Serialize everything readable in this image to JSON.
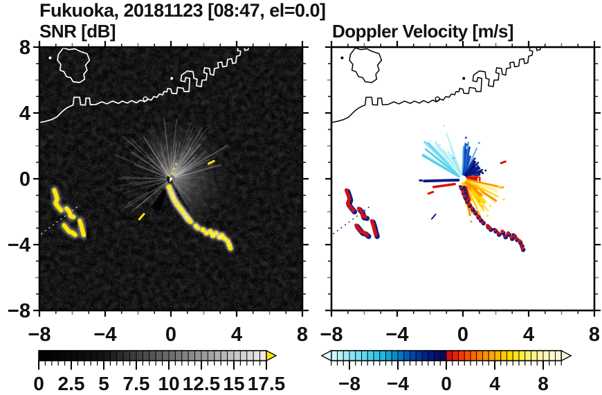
{
  "title": "Fukuoka, 20181123 [08:47, el=0.0]",
  "panels": {
    "snr_subtitle": "SNR [dB]",
    "doppler_subtitle": "Doppler Velocity [m/s]"
  },
  "axes": {
    "range": [
      -8,
      8
    ],
    "tick_values": [
      -8,
      -4,
      0,
      4,
      8
    ],
    "x_tick_labels": [
      "−8",
      "−4",
      "0",
      "4",
      "8"
    ],
    "y_tick_labels": [
      "8",
      "4",
      "0",
      "−4",
      "−8"
    ]
  },
  "colorbars": {
    "snr": {
      "range": [
        0,
        17.5
      ],
      "labels": [
        {
          "v": 0,
          "t": "0"
        },
        {
          "v": 2.5,
          "t": "2.5"
        },
        {
          "v": 5,
          "t": "5"
        },
        {
          "v": 7.5,
          "t": "7.5"
        },
        {
          "v": 10,
          "t": "10"
        },
        {
          "v": 12.5,
          "t": "12.5"
        },
        {
          "v": 15,
          "t": "15"
        },
        {
          "v": 17.5,
          "t": "17.5"
        }
      ],
      "over_arrow_color": "#ffe800",
      "cells": [
        "#010101",
        "#030303",
        "#050505",
        "#070707",
        "#090909",
        "#0b0b0b",
        "#0d0d0d",
        "#0f0f0f",
        "#111111",
        "#131313",
        "#181818",
        "#212121",
        "#2a2a2a",
        "#333333",
        "#3c3c3c",
        "#444444",
        "#4d4d4d",
        "#565656",
        "#5f5f5f",
        "#686868",
        "#707070",
        "#797979",
        "#828282",
        "#8b8b8b",
        "#949494",
        "#9c9c9c",
        "#a5a5a5",
        "#aeaeae",
        "#b7b7b7",
        "#c0c0c0",
        "#c8c8c8",
        "#d1d1d1",
        "#dadada",
        "#e3e3e3",
        "#ececec"
      ]
    },
    "doppler": {
      "range": [
        -9.5,
        9.5
      ],
      "labels": [
        {
          "v": -8,
          "t": "−8"
        },
        {
          "v": -4,
          "t": "−4"
        },
        {
          "v": 0,
          "t": "0"
        },
        {
          "v": 4,
          "t": "4"
        },
        {
          "v": 8,
          "t": "8"
        }
      ],
      "under_arrow_color": "#def9fc",
      "over_arrow_color": "#f7f4de",
      "cells": [
        "#cdf4f9",
        "#b8eff7",
        "#a2eaf5",
        "#8ce4f2",
        "#76def0",
        "#60d7ed",
        "#4aceea",
        "#34c4e6",
        "#20b6e0",
        "#10a3d8",
        "#078ecd",
        "#0376c1",
        "#025eb5",
        "#0147a8",
        "#02349b",
        "#03248d",
        "#04187e",
        "#050f6d",
        "#060a58",
        "#d60e0e",
        "#e62408",
        "#f13a03",
        "#f95001",
        "#fd6600",
        "#ff7b00",
        "#ff9000",
        "#ffa400",
        "#ffb700",
        "#ffc800",
        "#ffd700",
        "#ffe315",
        "#ffeb40",
        "#fff066",
        "#fff388",
        "#fff5a4",
        "#fff8ba",
        "#fdf8cb",
        "#faf6d8"
      ]
    }
  },
  "map": {
    "island": [
      [
        -6.55,
        7.95
      ],
      [
        -6.2,
        7.85
      ],
      [
        -5.85,
        7.9
      ],
      [
        -5.55,
        7.75
      ],
      [
        -5.1,
        7.6
      ],
      [
        -4.95,
        7.2
      ],
      [
        -5.2,
        6.9
      ],
      [
        -5.1,
        6.6
      ],
      [
        -5.3,
        6.35
      ],
      [
        -5.25,
        6.05
      ],
      [
        -5.55,
        5.85
      ],
      [
        -5.95,
        5.9
      ],
      [
        -6.1,
        6.15
      ],
      [
        -6.35,
        6.2
      ],
      [
        -6.5,
        6.5
      ],
      [
        -6.75,
        6.6
      ],
      [
        -6.7,
        6.95
      ],
      [
        -6.9,
        7.2
      ],
      [
        -6.85,
        7.55
      ],
      [
        -6.55,
        7.95
      ]
    ],
    "coast": [
      [
        -8.06,
        3.4
      ],
      [
        -7.6,
        3.5
      ],
      [
        -7.25,
        3.6
      ],
      [
        -6.95,
        3.75
      ],
      [
        -6.6,
        4.1
      ],
      [
        -6.35,
        4.3
      ],
      [
        -6.1,
        4.42
      ],
      [
        -5.95,
        4.48
      ],
      [
        -5.9,
        4.95
      ],
      [
        -5.55,
        4.95
      ],
      [
        -5.5,
        4.5
      ],
      [
        -5.2,
        4.48
      ],
      [
        -5.18,
        4.9
      ],
      [
        -4.95,
        4.9
      ],
      [
        -4.9,
        4.5
      ],
      [
        -4.55,
        4.52
      ],
      [
        -4.2,
        4.68
      ],
      [
        -3.9,
        4.55
      ],
      [
        -3.55,
        4.72
      ],
      [
        -3.2,
        4.58
      ],
      [
        -2.95,
        4.72
      ],
      [
        -2.65,
        4.6
      ],
      [
        -2.4,
        4.75
      ],
      [
        -2.1,
        4.62
      ],
      [
        -1.85,
        4.78
      ],
      [
        -1.6,
        4.68
      ],
      [
        -1.4,
        4.85
      ],
      [
        -1.2,
        4.78
      ],
      [
        -1.05,
        5.0
      ],
      [
        -0.85,
        4.95
      ],
      [
        -0.7,
        5.15
      ],
      [
        -0.5,
        5.1
      ],
      [
        -0.42,
        5.3
      ],
      [
        -0.25,
        5.28
      ],
      [
        -0.2,
        5.5
      ],
      [
        0.0,
        5.45
      ],
      [
        0.05,
        5.2
      ],
      [
        0.35,
        5.18
      ],
      [
        0.4,
        5.55
      ],
      [
        0.75,
        5.5
      ],
      [
        0.8,
        5.3
      ],
      [
        1.1,
        5.3
      ],
      [
        1.15,
        6.1
      ],
      [
        0.9,
        6.15
      ],
      [
        0.85,
        5.9
      ],
      [
        0.6,
        5.95
      ],
      [
        0.65,
        6.3
      ],
      [
        1.0,
        6.55
      ],
      [
        1.35,
        6.5
      ],
      [
        1.4,
        6.1
      ],
      [
        1.6,
        6.05
      ],
      [
        1.55,
        5.65
      ],
      [
        1.85,
        5.6
      ],
      [
        1.9,
        6.0
      ],
      [
        2.15,
        6.0
      ],
      [
        2.2,
        6.4
      ],
      [
        2.0,
        6.45
      ],
      [
        2.05,
        6.75
      ],
      [
        2.35,
        6.7
      ],
      [
        2.4,
        6.35
      ],
      [
        2.6,
        6.3
      ],
      [
        2.65,
        6.7
      ],
      [
        2.9,
        6.75
      ],
      [
        2.85,
        7.05
      ],
      [
        3.1,
        7.1
      ],
      [
        3.15,
        6.8
      ],
      [
        3.4,
        6.85
      ],
      [
        3.45,
        7.25
      ],
      [
        3.7,
        7.3
      ],
      [
        3.75,
        7.0
      ],
      [
        3.95,
        7.05
      ],
      [
        4.0,
        7.45
      ],
      [
        4.2,
        7.5
      ],
      [
        4.25,
        7.75
      ],
      [
        4.05,
        7.8
      ],
      [
        4.1,
        8.1
      ]
    ],
    "notch": [
      [
        4.45,
        8.1
      ],
      [
        4.5,
        7.8
      ],
      [
        4.7,
        7.85
      ],
      [
        4.75,
        8.1
      ]
    ],
    "islets": [
      [
        -7.35,
        7.35
      ],
      [
        0.05,
        6.1
      ]
    ],
    "ring_islet": [
      -1.55,
      4.85
    ]
  },
  "features": {
    "chain": [
      [
        -0.12,
        -0.5
      ],
      [
        0.0,
        -0.78
      ],
      [
        0.1,
        -1.05
      ],
      [
        0.22,
        -1.3
      ],
      [
        0.38,
        -1.55
      ],
      [
        0.55,
        -1.78
      ],
      [
        0.72,
        -2.0
      ],
      [
        0.9,
        -2.25
      ],
      [
        1.05,
        -2.45
      ],
      [
        1.2,
        -2.6
      ],
      [
        1.5,
        -2.85
      ],
      [
        1.65,
        -3.0
      ],
      [
        1.95,
        -3.1
      ],
      [
        2.15,
        -3.3
      ],
      [
        2.4,
        -3.2
      ],
      [
        2.55,
        -3.45
      ],
      [
        2.75,
        -3.3
      ],
      [
        2.95,
        -3.55
      ],
      [
        3.1,
        -3.42
      ],
      [
        3.25,
        -3.62
      ],
      [
        3.45,
        -3.78
      ],
      [
        3.55,
        -4.0
      ],
      [
        3.62,
        -4.22
      ]
    ],
    "strips": [
      [
        [
          -7.1,
          -0.68
        ],
        [
          -7.0,
          -0.95
        ],
        [
          -6.92,
          -1.22
        ],
        [
          -7.02,
          -1.5
        ],
        [
          -6.85,
          -1.72
        ],
        [
          -6.68,
          -1.92
        ]
      ],
      [
        [
          -6.35,
          -1.8
        ],
        [
          -6.18,
          -2.0
        ],
        [
          -6.1,
          -2.28
        ],
        [
          -5.92,
          -2.32
        ]
      ],
      [
        [
          -6.5,
          -2.82
        ],
        [
          -6.35,
          -3.02
        ],
        [
          -6.18,
          -3.22
        ],
        [
          -5.98,
          -3.28
        ],
        [
          -5.82,
          -3.42
        ]
      ],
      [
        [
          -5.55,
          -2.55
        ],
        [
          -5.45,
          -2.85
        ],
        [
          -5.38,
          -3.15
        ],
        [
          -5.3,
          -3.42
        ]
      ]
    ],
    "dotted_line": [
      [
        -7.9,
        -3.35
      ],
      [
        -5.55,
        -1.6
      ]
    ],
    "snr_dashes": [
      [
        [
          2.3,
          0.92
        ],
        [
          2.62,
          1.08
        ]
      ],
      [
        [
          -1.92,
          -2.46
        ],
        [
          -1.64,
          -2.14
        ]
      ]
    ],
    "dop_dashes": [
      {
        "pts": [
          [
            2.32,
            0.95
          ],
          [
            2.58,
            1.05
          ]
        ],
        "color": "#d80f0c",
        "w": 3
      },
      {
        "pts": [
          [
            -1.9,
            -2.44
          ],
          [
            -1.66,
            -2.16
          ]
        ],
        "color": "#0a1e8c",
        "w": 2
      }
    ],
    "snr_center_specks": [
      [
        0.08,
        0.3
      ],
      [
        0.2,
        0.62
      ],
      [
        -0.1,
        0.18
      ],
      [
        0.32,
        0.9
      ],
      [
        -0.04,
        -0.12
      ]
    ],
    "snr_fan_groups": [
      {
        "angle": [
          15,
          85
        ],
        "count": 42,
        "len": [
          0.8,
          4.0
        ],
        "op": [
          0.1,
          0.5
        ],
        "width": [
          0.8,
          2.0
        ]
      },
      {
        "angle": [
          85,
          160
        ],
        "count": 30,
        "len": [
          0.7,
          4.2
        ],
        "op": [
          0.08,
          0.38
        ],
        "width": [
          0.8,
          1.8
        ]
      },
      {
        "angle": [
          160,
          256
        ],
        "count": 20,
        "len": [
          0.7,
          3.4
        ],
        "op": [
          0.08,
          0.3
        ],
        "width": [
          0.8,
          1.6
        ]
      },
      {
        "angle": [
          -78,
          15
        ],
        "count": 16,
        "len": [
          0.5,
          2.4
        ],
        "op": [
          0.06,
          0.25
        ],
        "width": [
          0.8,
          1.6
        ]
      }
    ],
    "snr_shadow_wedges": [
      {
        "a1": 236,
        "a2": 252,
        "r": 2.1
      },
      {
        "a1": 206,
        "a2": 212,
        "r": 1.6
      }
    ],
    "dop_ray_groups": [
      {
        "angle": [
          96,
          152
        ],
        "len": [
          0.7,
          3.3
        ],
        "count": 26,
        "colors": [
          "#aeeef8",
          "#7adef3",
          "#54cdec",
          "#cdf4f9"
        ],
        "width": [
          1.6,
          3.2
        ]
      },
      {
        "angle": [
          62,
          96
        ],
        "len": [
          0.5,
          2.3
        ],
        "count": 18,
        "colors": [
          "#1f66d6",
          "#0d47c0",
          "#3f9fe0"
        ],
        "width": [
          1.6,
          3.0
        ]
      },
      {
        "angle": [
          12,
          62
        ],
        "len": [
          0.35,
          1.6
        ],
        "count": 36,
        "colors": [
          "#0a1e8c",
          "#122ba0",
          "#051166"
        ],
        "width": [
          2.0,
          4.6
        ]
      },
      {
        "angle": [
          -8,
          14
        ],
        "len": [
          0.3,
          1.1
        ],
        "count": 12,
        "colors": [
          "#d80f0c",
          "#f04000"
        ],
        "width": [
          2.0,
          3.6
        ]
      },
      {
        "angle": [
          -96,
          -8
        ],
        "len": [
          0.5,
          2.6
        ],
        "count": 48,
        "colors": [
          "#ff9000",
          "#ffc400",
          "#ffe24a",
          "#fff098",
          "#ffd700"
        ],
        "width": [
          1.6,
          3.4
        ]
      }
    ],
    "dop_segments": [
      {
        "pts": [
          [
            -0.28,
            -0.08
          ],
          [
            -2.35,
            -0.14
          ]
        ],
        "color": "#0a1e8c",
        "w": 4
      },
      {
        "pts": [
          [
            -2.62,
            -0.1
          ],
          [
            -2.5,
            -0.1
          ]
        ],
        "color": "#0a1e8c",
        "w": 3
      },
      {
        "pts": [
          [
            -0.5,
            -0.32
          ],
          [
            -1.78,
            -0.5
          ]
        ],
        "color": "#d80f0c",
        "w": 3.5
      },
      {
        "pts": [
          [
            -2.1,
            -0.9
          ],
          [
            -1.82,
            -0.8
          ]
        ],
        "color": "#d80f0c",
        "w": 3
      },
      {
        "pts": [
          [
            0.08,
            -0.5
          ],
          [
            0.3,
            -1.45
          ]
        ],
        "color": "#0a1e8c",
        "w": 4
      },
      {
        "pts": [
          [
            0.2,
            -0.5
          ],
          [
            0.42,
            -1.3
          ]
        ],
        "color": "#d80f0c",
        "w": 2.5
      }
    ]
  },
  "chart_data": [
    {
      "type": "heatmap",
      "title": "SNR [dB]",
      "x_range": [
        -8,
        8
      ],
      "y_range": [
        -8,
        8
      ],
      "x_ticks": [
        -8,
        -4,
        0,
        4,
        8
      ],
      "y_ticks": [
        -8,
        -4,
        0,
        4,
        8
      ],
      "colorbar": {
        "range": [
          0,
          17.5
        ],
        "tick_labels": [
          "0",
          "2.5",
          "5",
          "7.5",
          "10",
          "12.5",
          "15",
          "17.5"
        ],
        "colormap": "black to white grayscale with yellow over-range arrow"
      },
      "described_features": [
        "near-black speckle-noise background",
        "white Fukuoka bay coastline with blocky harbor structures upper right and island upper left",
        "gray radial beam streaks from radar at origin",
        "yellow above-scale echo chain from (0,-0.5) to (3.6,-4.2)",
        "yellow echo clusters around (-7,-1) to (-5.3,-3.4)",
        "small yellow echo at (2.45,1.0)"
      ]
    },
    {
      "type": "heatmap",
      "title": "Doppler Velocity [m/s]",
      "x_range": [
        -8,
        8
      ],
      "y_range": [
        -8,
        8
      ],
      "x_ticks": [
        -8,
        -4,
        0,
        4,
        8
      ],
      "y_ticks": [
        -8,
        -4,
        0,
        4,
        8
      ],
      "colorbar": {
        "range": [
          -9.5,
          9.5
        ],
        "tick_labels": [
          "−8",
          "−4",
          "0",
          "4",
          "8"
        ],
        "colormap": "pale cyan to dark navy (negative) / red to pale yellow (positive) diverging"
      },
      "described_features": [
        "white background with black coastline",
        "velocity splat at origin: cyan rays up-left, dark navy cluster up-right, red east, orange-yellow fan down-right",
        "red/navy echo chain matching SNR chain",
        "red/navy clusters at left matching SNR clusters"
      ]
    }
  ]
}
